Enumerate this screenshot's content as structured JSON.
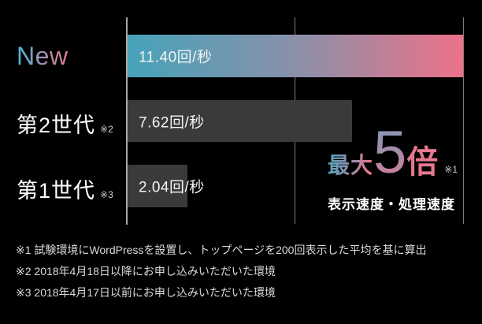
{
  "chart_data": {
    "type": "bar",
    "orientation": "horizontal",
    "categories": [
      "New",
      "第2世代",
      "第1世代"
    ],
    "category_footnote_marks": [
      "",
      "※2",
      "※3"
    ],
    "values": [
      11.4,
      7.62,
      2.04
    ],
    "value_labels": [
      "11.40回/秒",
      "7.62回/秒",
      "2.04回/秒"
    ],
    "unit": "回/秒",
    "xlim": [
      0,
      11.4
    ],
    "gridlines_x": [
      0,
      5.7,
      11.4
    ],
    "legend": "none",
    "grid": "vertical lines only",
    "bar_colors": {
      "new_bar_gradient": [
        "#46a3ba",
        "#8e8fa9",
        "#ec7288"
      ],
      "old_bar_gray": "#3a3a3c"
    },
    "annotation": {
      "prefix": "最大",
      "big_number": "5",
      "suffix": "倍",
      "footnote_mark": "※1",
      "subtitle": "表示速度・処理速度"
    },
    "footnotes": [
      "※1 試験環境にWordPressを設置し、トップページを200回表示した平均を基に算出",
      "※2 2018年4月18日以降にお申し込みいただいた環境",
      "※3 2018年4月17日以前にお申し込みいただいた環境"
    ]
  },
  "colors": {
    "background": "#000000",
    "axis_line": "#a8a8aa",
    "gridline": "#7e7e80",
    "bar_label_text": "#f4f4f4",
    "category_text": "#ffffff",
    "footnote_text": "#dadada",
    "accent_teal": "#46a3ba",
    "accent_pink": "#ec7288"
  }
}
